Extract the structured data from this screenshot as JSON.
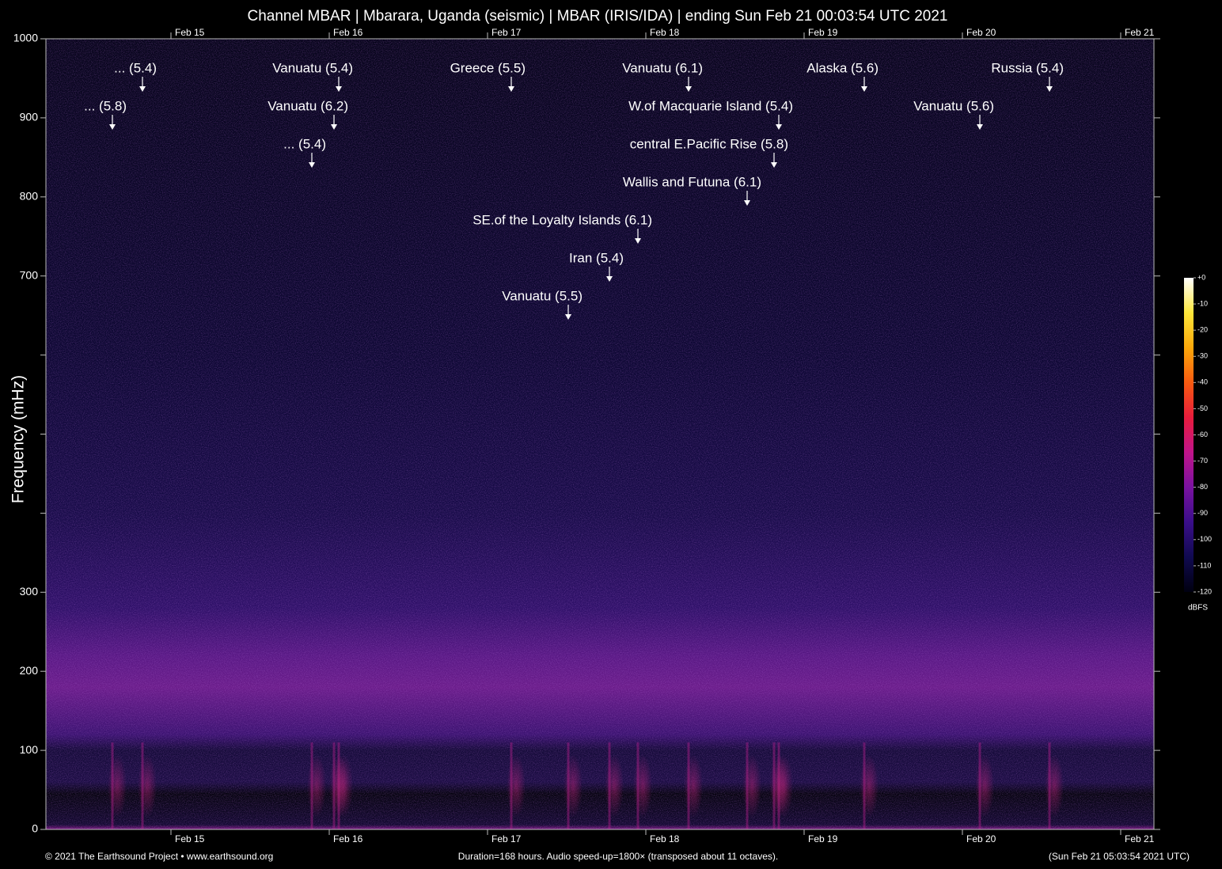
{
  "chart_data": {
    "type": "spectrogram",
    "title": "Channel MBAR | Mbarara, Uganda (seismic) | MBAR (IRIS/IDA) | ending Sun Feb 21 00:03:54 UTC 2021",
    "ylabel": "Frequency (mHz)",
    "xlim": [
      14.21,
      21.21
    ],
    "xticks": [
      {
        "value": 15,
        "label": "Feb 15"
      },
      {
        "value": 16,
        "label": "Feb 16"
      },
      {
        "value": 17,
        "label": "Feb 17"
      },
      {
        "value": 18,
        "label": "Feb 18"
      },
      {
        "value": 19,
        "label": "Feb 19"
      },
      {
        "value": 20,
        "label": "Feb 20"
      },
      {
        "value": 21,
        "label": "Feb 21"
      }
    ],
    "ylim": [
      0,
      1000
    ],
    "yticks": [
      0,
      100,
      200,
      300,
      700,
      800,
      900,
      1000
    ],
    "yticks_minor": [
      400,
      500,
      600
    ],
    "events": [
      {
        "x": 14.82,
        "label": "... (5.4)"
      },
      {
        "x": 14.63,
        "label": "... (5.8)"
      },
      {
        "x": 16.06,
        "label": "Vanuatu (5.4)"
      },
      {
        "x": 16.03,
        "label": "Vanuatu (6.2)"
      },
      {
        "x": 15.89,
        "label": "... (5.4)"
      },
      {
        "x": 17.15,
        "label": "Greece (5.5)"
      },
      {
        "x": 18.27,
        "label": "Vanuatu (6.1)"
      },
      {
        "x": 18.84,
        "label": "W.of Macquarie Island (5.4)"
      },
      {
        "x": 18.81,
        "label": "central E.Pacific Rise (5.8)"
      },
      {
        "x": 18.64,
        "label": "Wallis and Futuna (6.1)"
      },
      {
        "x": 17.95,
        "label": "SE.of the Loyalty Islands (6.1)"
      },
      {
        "x": 17.77,
        "label": "Iran (5.4)"
      },
      {
        "x": 17.51,
        "label": "Vanuatu (5.5)"
      },
      {
        "x": 19.38,
        "label": "Alaska (5.6)"
      },
      {
        "x": 20.55,
        "label": "Russia (5.4)"
      },
      {
        "x": 20.11,
        "label": "Vanuatu (5.6)"
      }
    ],
    "colorbar": {
      "label": "dBFS",
      "lim": [
        -120,
        0
      ],
      "ticks": [
        {
          "value": 0,
          "label": "+0"
        },
        -10,
        -20,
        -30,
        -40,
        -50,
        -60,
        -70,
        -80,
        -90,
        -100,
        -110,
        -120
      ],
      "colors": [
        "#000010",
        "#100a50",
        "#3a0e8a",
        "#7a12a0",
        "#c0148a",
        "#e81c3c",
        "#f85a10",
        "#fca80a",
        "#fde63a",
        "#ffffff"
      ]
    },
    "footer": {
      "left": "© 2021 The Earthsound Project • www.earthsound.org",
      "center": "Duration=168 hours. Audio speed-up=1800× (transposed about 11 octaves).",
      "right": "(Sun Feb 21 05:03:54 2021 UTC)"
    }
  }
}
